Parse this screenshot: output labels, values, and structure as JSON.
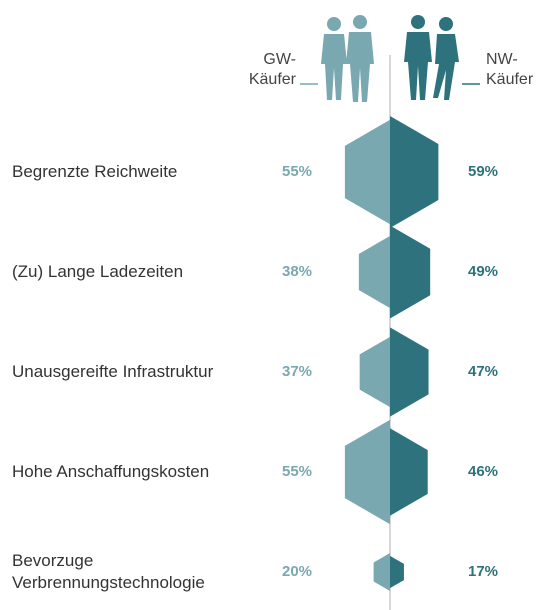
{
  "chart_data": {
    "type": "hexagon-butterfly",
    "categories": [
      "Begrenzte Reichweite",
      "(Zu) Lange Ladezeiten",
      "Unausgereifte Infrastruktur",
      "Hohe Anschaffungskosten",
      "Bevorzuge Verbrennungstechnologie"
    ],
    "series": [
      {
        "name": "GW-Käufer",
        "color": "#7aa8b1",
        "values": [
          55,
          38,
          37,
          55,
          20
        ],
        "value_labels": [
          "55%",
          "38%",
          "37%",
          "55%",
          "20%"
        ]
      },
      {
        "name": "NW-Käufer",
        "color": "#2d727d",
        "values": [
          59,
          49,
          47,
          46,
          17
        ],
        "value_labels": [
          "59%",
          "49%",
          "47%",
          "46%",
          "17%"
        ]
      }
    ]
  }
}
